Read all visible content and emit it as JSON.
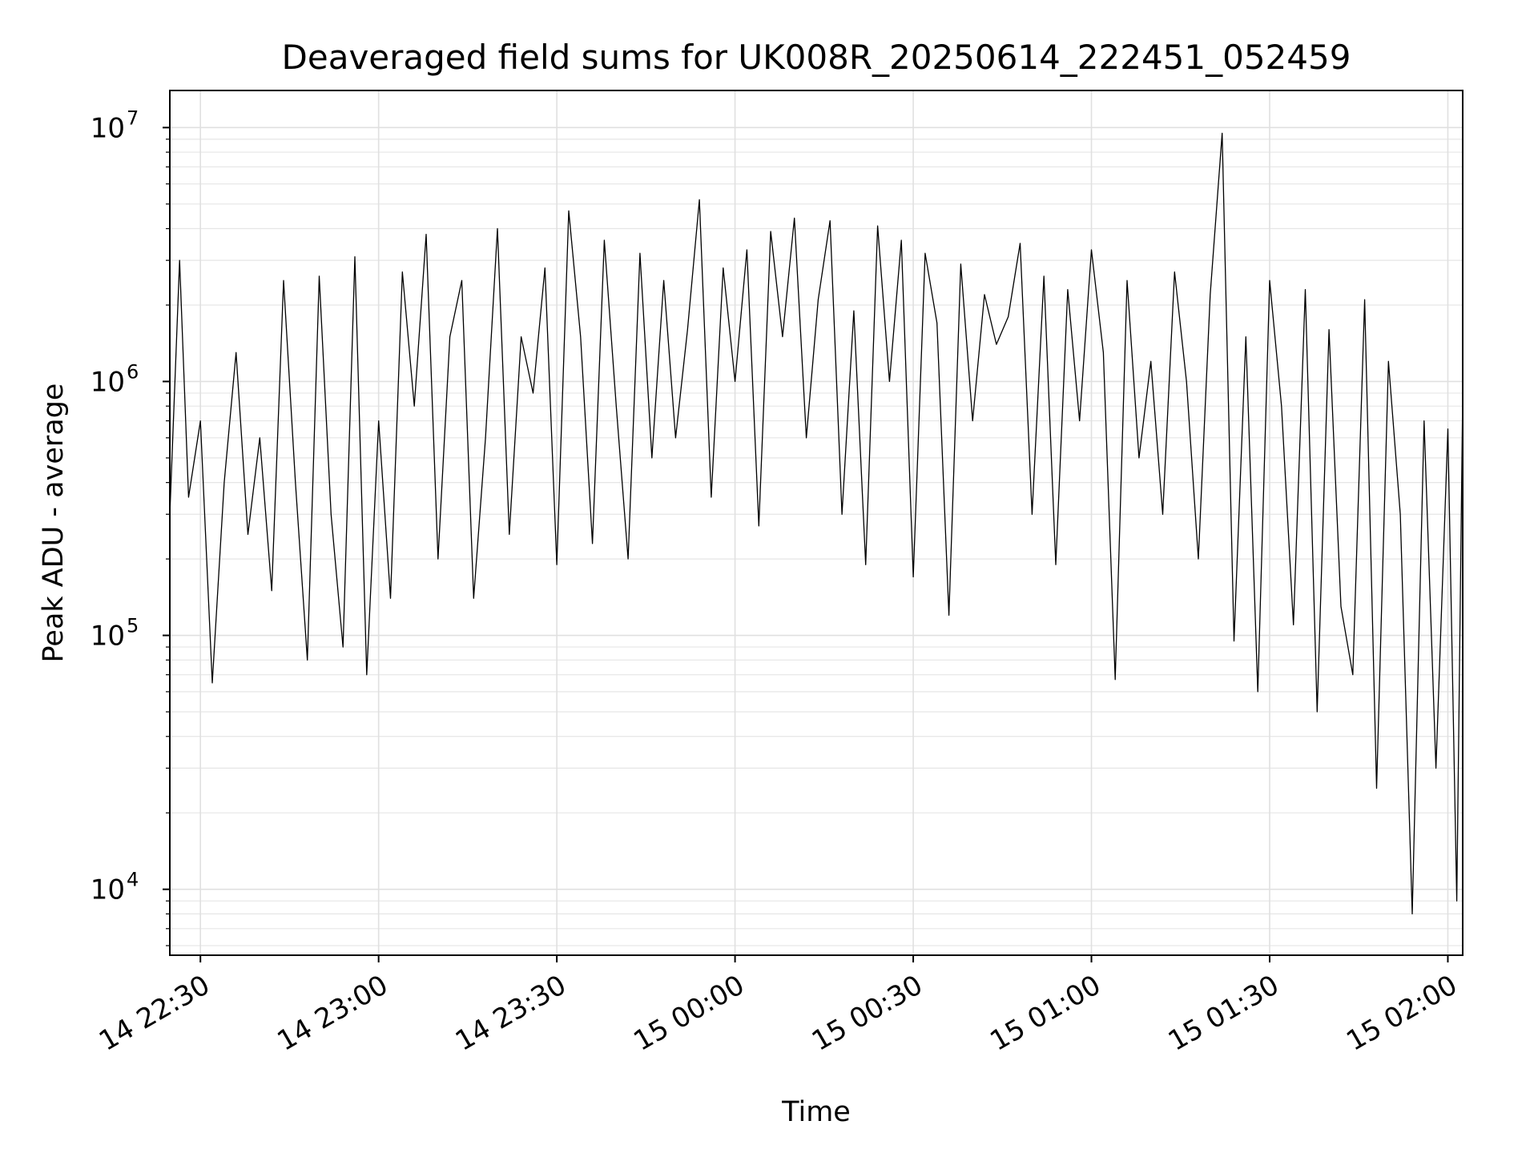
{
  "chart_data": {
    "type": "line",
    "title": "Deaveraged field sums for UK008R_20250614_222451_052459",
    "xlabel": "Time",
    "ylabel": "Peak ADU - average",
    "yscale": "log",
    "ylim": [
      5500,
      14000000
    ],
    "xlim": [
      "2025-06-14 22:24:51",
      "2025-06-15 02:02:30"
    ],
    "grid": true,
    "x_tick_labels": [
      "14 22:30",
      "14 23:00",
      "14 23:30",
      "15 00:00",
      "15 00:30",
      "15 01:00",
      "15 01:30",
      "15 02:00"
    ],
    "y_tick_labels": [
      {
        "base": "10",
        "exp": "4"
      },
      {
        "base": "10",
        "exp": "5"
      },
      {
        "base": "10",
        "exp": "6"
      },
      {
        "base": "10",
        "exp": "7"
      }
    ],
    "series": [
      {
        "color": "#000000",
        "x": [
          "2025-06-14 22:24:51",
          "2025-06-14 22:26:30",
          "2025-06-14 22:28:00",
          "2025-06-14 22:30:00",
          "2025-06-14 22:32:00",
          "2025-06-14 22:34:00",
          "2025-06-14 22:36:00",
          "2025-06-14 22:38:00",
          "2025-06-14 22:40:00",
          "2025-06-14 22:42:00",
          "2025-06-14 22:44:00",
          "2025-06-14 22:46:00",
          "2025-06-14 22:48:00",
          "2025-06-14 22:50:00",
          "2025-06-14 22:52:00",
          "2025-06-14 22:54:00",
          "2025-06-14 22:56:00",
          "2025-06-14 22:58:00",
          "2025-06-14 23:00:00",
          "2025-06-14 23:02:00",
          "2025-06-14 23:04:00",
          "2025-06-14 23:06:00",
          "2025-06-14 23:08:00",
          "2025-06-14 23:10:00",
          "2025-06-14 23:12:00",
          "2025-06-14 23:14:00",
          "2025-06-14 23:16:00",
          "2025-06-14 23:18:00",
          "2025-06-14 23:20:00",
          "2025-06-14 23:22:00",
          "2025-06-14 23:24:00",
          "2025-06-14 23:26:00",
          "2025-06-14 23:28:00",
          "2025-06-14 23:30:00",
          "2025-06-14 23:32:00",
          "2025-06-14 23:34:00",
          "2025-06-14 23:36:00",
          "2025-06-14 23:38:00",
          "2025-06-14 23:40:00",
          "2025-06-14 23:42:00",
          "2025-06-14 23:44:00",
          "2025-06-14 23:46:00",
          "2025-06-14 23:48:00",
          "2025-06-14 23:50:00",
          "2025-06-14 23:52:00",
          "2025-06-14 23:54:00",
          "2025-06-14 23:56:00",
          "2025-06-14 23:58:00",
          "2025-06-15 00:00:00",
          "2025-06-15 00:02:00",
          "2025-06-15 00:04:00",
          "2025-06-15 00:06:00",
          "2025-06-15 00:08:00",
          "2025-06-15 00:10:00",
          "2025-06-15 00:12:00",
          "2025-06-15 00:14:00",
          "2025-06-15 00:16:00",
          "2025-06-15 00:18:00",
          "2025-06-15 00:20:00",
          "2025-06-15 00:22:00",
          "2025-06-15 00:24:00",
          "2025-06-15 00:26:00",
          "2025-06-15 00:28:00",
          "2025-06-15 00:30:00",
          "2025-06-15 00:32:00",
          "2025-06-15 00:34:00",
          "2025-06-15 00:36:00",
          "2025-06-15 00:38:00",
          "2025-06-15 00:40:00",
          "2025-06-15 00:42:00",
          "2025-06-15 00:44:00",
          "2025-06-15 00:46:00",
          "2025-06-15 00:48:00",
          "2025-06-15 00:50:00",
          "2025-06-15 00:52:00",
          "2025-06-15 00:54:00",
          "2025-06-15 00:56:00",
          "2025-06-15 00:58:00",
          "2025-06-15 01:00:00",
          "2025-06-15 01:02:00",
          "2025-06-15 01:04:00",
          "2025-06-15 01:06:00",
          "2025-06-15 01:08:00",
          "2025-06-15 01:10:00",
          "2025-06-15 01:12:00",
          "2025-06-15 01:14:00",
          "2025-06-15 01:16:00",
          "2025-06-15 01:18:00",
          "2025-06-15 01:20:00",
          "2025-06-15 01:22:00",
          "2025-06-15 01:24:00",
          "2025-06-15 01:26:00",
          "2025-06-15 01:28:00",
          "2025-06-15 01:30:00",
          "2025-06-15 01:32:00",
          "2025-06-15 01:34:00",
          "2025-06-15 01:36:00",
          "2025-06-15 01:38:00",
          "2025-06-15 01:40:00",
          "2025-06-15 01:42:00",
          "2025-06-15 01:44:00",
          "2025-06-15 01:46:00",
          "2025-06-15 01:48:00",
          "2025-06-15 01:50:00",
          "2025-06-15 01:52:00",
          "2025-06-15 01:54:00",
          "2025-06-15 01:56:00",
          "2025-06-15 01:58:00",
          "2025-06-15 02:00:00",
          "2025-06-15 02:01:30",
          "2025-06-15 02:02:30"
        ],
        "y": [
          300000,
          3000000,
          350000,
          700000,
          65000,
          400000,
          1300000,
          250000,
          600000,
          150000,
          2500000,
          400000,
          80000,
          2600000,
          300000,
          90000,
          3100000,
          70000,
          700000,
          140000,
          2700000,
          800000,
          3800000,
          200000,
          1500000,
          2500000,
          140000,
          600000,
          4000000,
          250000,
          1500000,
          900000,
          2800000,
          190000,
          4700000,
          1500000,
          230000,
          3600000,
          800000,
          200000,
          3200000,
          500000,
          2500000,
          600000,
          1600000,
          5200000,
          350000,
          2800000,
          1000000,
          3300000,
          270000,
          3900000,
          1500000,
          4400000,
          600000,
          2100000,
          4300000,
          300000,
          1900000,
          190000,
          4100000,
          1000000,
          3600000,
          170000,
          3200000,
          1700000,
          120000,
          2900000,
          700000,
          2200000,
          1400000,
          1800000,
          3500000,
          300000,
          2600000,
          190000,
          2300000,
          700000,
          3300000,
          1300000,
          67000,
          2500000,
          500000,
          1200000,
          300000,
          2700000,
          1000000,
          200000,
          2200000,
          9500000,
          95000,
          1500000,
          60000,
          2500000,
          800000,
          110000,
          2300000,
          50000,
          1600000,
          130000,
          70000,
          2100000,
          25000,
          1200000,
          300000,
          8000,
          700000,
          30000,
          650000,
          9000,
          900000
        ]
      }
    ]
  }
}
